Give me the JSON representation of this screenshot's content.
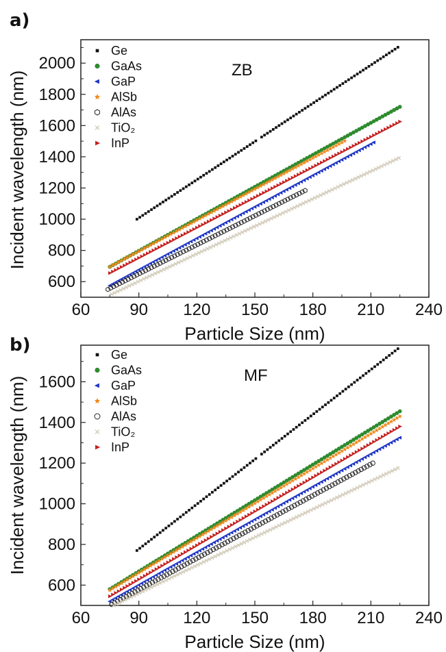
{
  "chart_data": [
    {
      "panel": "a)",
      "type": "scatter",
      "annotation": "ZB",
      "xlabel": "Particle Size (nm)",
      "ylabel": "Incident wavelength (nm)",
      "xlim": [
        60,
        240
      ],
      "ylim": [
        500,
        2150
      ],
      "xticks": [
        "60",
        "90",
        "120",
        "150",
        "180",
        "210",
        "240"
      ],
      "yticks": [
        "600",
        "800",
        "1000",
        "1200",
        "1400",
        "1600",
        "1800",
        "2000"
      ],
      "grid": false,
      "legend": "top-left",
      "series": [
        {
          "name": "Ge",
          "color": "#111111",
          "marker": "square",
          "x_start": 89,
          "x_end": 225,
          "y_start": 1000,
          "y_end": 2110,
          "gap": [
            151,
            153
          ]
        },
        {
          "name": "GaAs",
          "color": "#2e8b2e",
          "marker": "circle",
          "x_start": 75,
          "x_end": 225,
          "y_start": 695,
          "y_end": 1720
        },
        {
          "name": "GaP",
          "color": "#1f35c4",
          "marker": "triangle-left",
          "x_start": 75,
          "x_end": 212,
          "y_start": 575,
          "y_end": 1495
        },
        {
          "name": "AlSb",
          "color": "#f08a1e",
          "marker": "star",
          "x_start": 75,
          "x_end": 197,
          "y_start": 695,
          "y_end": 1505
        },
        {
          "name": "AlAs",
          "color": "#222222",
          "marker": "hexagon-open",
          "x_start": 74,
          "x_end": 177,
          "y_start": 550,
          "y_end": 1190
        },
        {
          "name": "TiO₂",
          "color": "#cdc6b2",
          "marker": "x",
          "x_start": 76,
          "x_end": 225,
          "y_start": 520,
          "y_end": 1395
        },
        {
          "name": "InP",
          "color": "#c42020",
          "marker": "triangle-right",
          "x_start": 75,
          "x_end": 225,
          "y_start": 655,
          "y_end": 1625
        }
      ]
    },
    {
      "panel": "b)",
      "type": "scatter",
      "annotation": "MF",
      "xlabel": "Particle Size (nm)",
      "ylabel": "Incident wavelength (nm)",
      "xlim": [
        60,
        240
      ],
      "ylim": [
        500,
        1780
      ],
      "xticks": [
        "60",
        "90",
        "120",
        "150",
        "180",
        "210",
        "240"
      ],
      "yticks": [
        "600",
        "800",
        "1000",
        "1200",
        "1400",
        "1600"
      ],
      "grid": false,
      "legend": "top-left",
      "series": [
        {
          "name": "Ge",
          "color": "#111111",
          "marker": "square",
          "x_start": 89,
          "x_end": 225,
          "y_start": 770,
          "y_end": 1770,
          "gap": [
            151,
            153
          ]
        },
        {
          "name": "GaAs",
          "color": "#2e8b2e",
          "marker": "circle",
          "x_start": 75,
          "x_end": 225,
          "y_start": 580,
          "y_end": 1455
        },
        {
          "name": "GaP",
          "color": "#1f35c4",
          "marker": "triangle-left",
          "x_start": 75,
          "x_end": 225,
          "y_start": 520,
          "y_end": 1325
        },
        {
          "name": "AlSb",
          "color": "#f08a1e",
          "marker": "star",
          "x_start": 75,
          "x_end": 225,
          "y_start": 575,
          "y_end": 1430
        },
        {
          "name": "AlAs",
          "color": "#222222",
          "marker": "circle-open",
          "x_start": 76,
          "x_end": 211,
          "y_start": 505,
          "y_end": 1200
        },
        {
          "name": "TiO₂",
          "color": "#cdc6b2",
          "marker": "x",
          "x_start": 77,
          "x_end": 225,
          "y_start": 500,
          "y_end": 1180
        },
        {
          "name": "InP",
          "color": "#c42020",
          "marker": "triangle-right",
          "x_start": 75,
          "x_end": 225,
          "y_start": 545,
          "y_end": 1380
        }
      ]
    }
  ]
}
